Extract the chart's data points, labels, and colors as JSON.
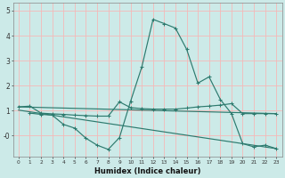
{
  "xlabel": "Humidex (Indice chaleur)",
  "bg_color": "#cceae8",
  "grid_color": "#f5b8b8",
  "line_color": "#2d7a6e",
  "xlim": [
    -0.5,
    23.5
  ],
  "ylim": [
    -0.85,
    5.3
  ],
  "ytick_vals": [
    5,
    4,
    3,
    2,
    1,
    0
  ],
  "ytick_labels": [
    "5",
    "4",
    "3",
    "2",
    "1",
    "-0"
  ],
  "xtick_vals": [
    0,
    1,
    2,
    3,
    4,
    5,
    6,
    7,
    8,
    9,
    10,
    11,
    12,
    13,
    14,
    15,
    16,
    17,
    18,
    19,
    20,
    21,
    22,
    23
  ],
  "series_main_x": [
    1,
    2,
    3,
    4,
    5,
    6,
    7,
    8,
    9,
    10,
    11,
    12,
    13,
    14,
    15,
    16,
    17,
    18,
    19,
    20,
    21,
    22,
    23
  ],
  "series_main_y": [
    0.9,
    0.85,
    0.82,
    0.45,
    0.3,
    -0.1,
    -0.38,
    -0.55,
    -0.08,
    1.38,
    2.75,
    4.65,
    4.48,
    4.3,
    3.45,
    2.1,
    2.35,
    1.45,
    0.88,
    -0.32,
    -0.45,
    -0.38,
    -0.52
  ],
  "series_flat_x": [
    0,
    1,
    2,
    3,
    4,
    5,
    6,
    7,
    8,
    9,
    10,
    11,
    12,
    13,
    14,
    15,
    16,
    17,
    18,
    19,
    20,
    21,
    22,
    23
  ],
  "series_flat_y": [
    1.15,
    1.18,
    0.9,
    0.87,
    0.85,
    0.82,
    0.8,
    0.78,
    0.78,
    1.35,
    1.12,
    1.08,
    1.06,
    1.06,
    1.06,
    1.1,
    1.15,
    1.18,
    1.22,
    1.28,
    0.88,
    0.88,
    0.88,
    0.88
  ],
  "series_line1_x": [
    0,
    23
  ],
  "series_line1_y": [
    1.15,
    0.88
  ],
  "series_line2_x": [
    0,
    23
  ],
  "series_line2_y": [
    1.02,
    -0.52
  ]
}
